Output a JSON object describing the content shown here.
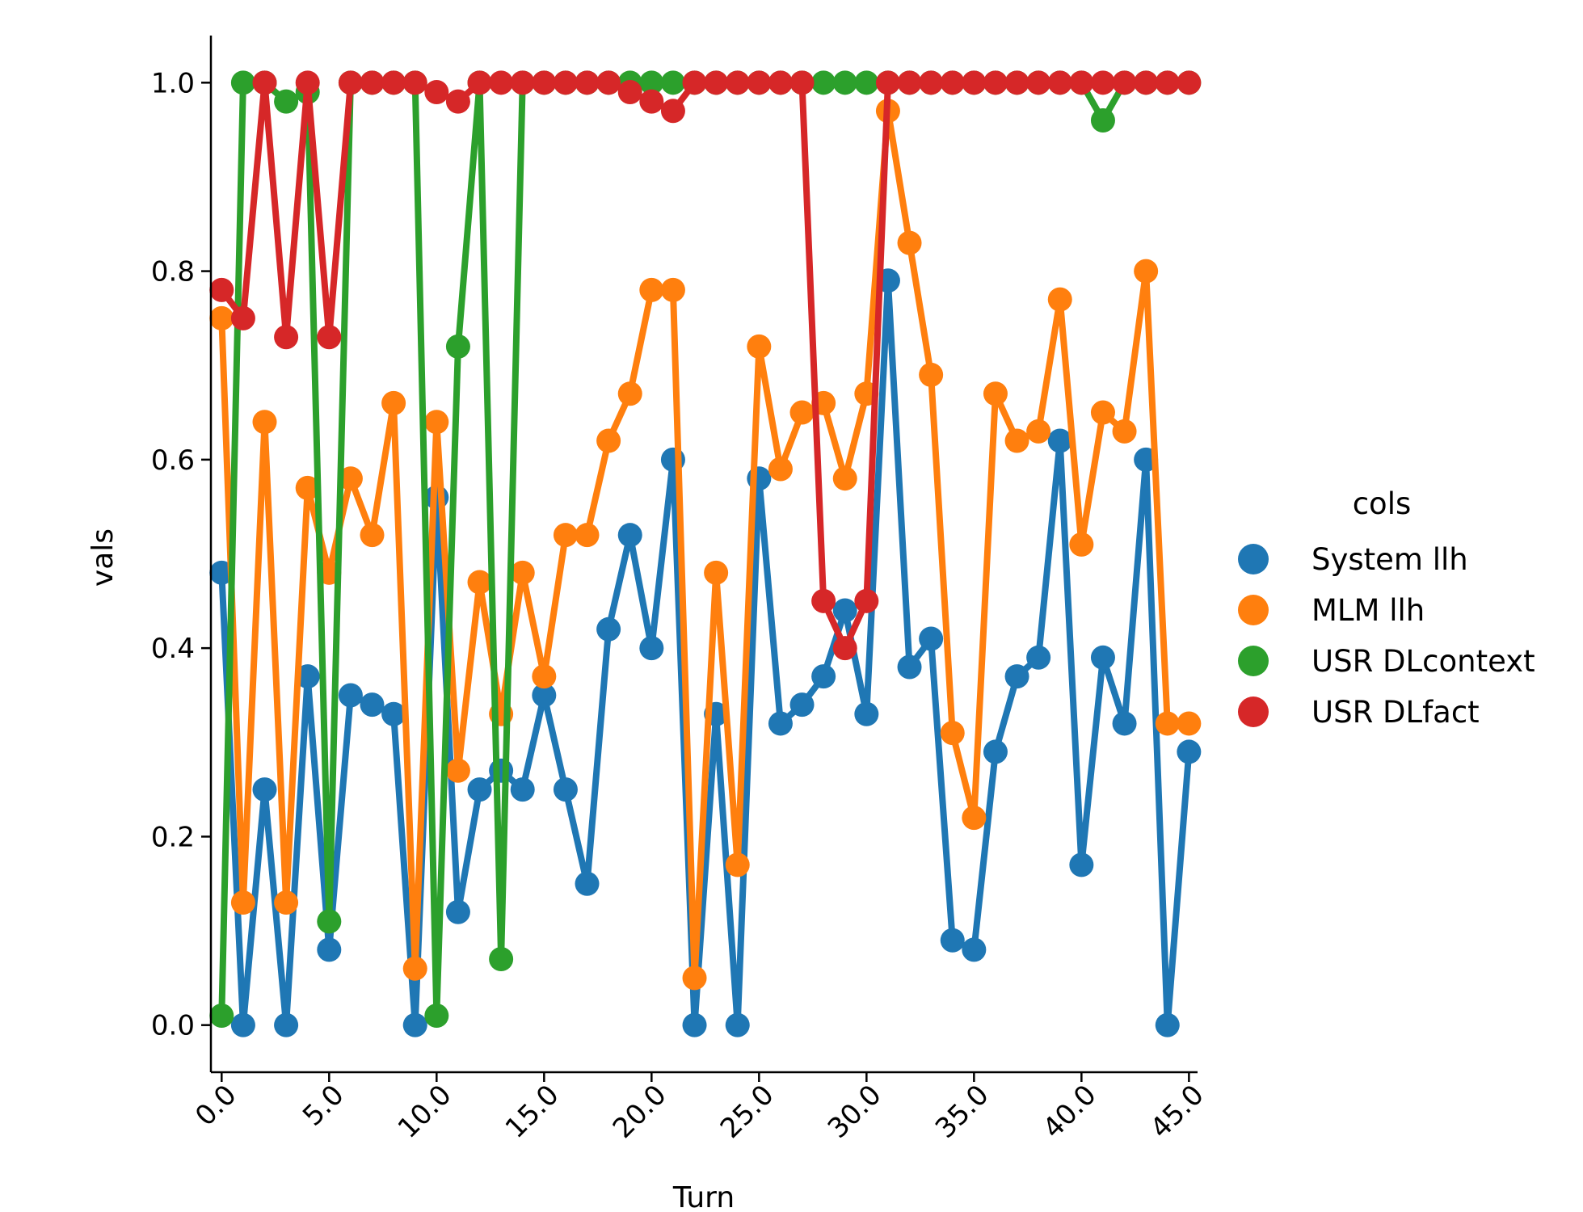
{
  "chart_data": {
    "type": "line",
    "xlabel": "Turn",
    "ylabel": "vals",
    "x": [
      0,
      1,
      2,
      3,
      4,
      5,
      6,
      7,
      8,
      9,
      10,
      11,
      12,
      13,
      14,
      15,
      16,
      17,
      18,
      19,
      20,
      21,
      22,
      23,
      24,
      25,
      26,
      27,
      28,
      29,
      30,
      31,
      32,
      33,
      34,
      35,
      36,
      37,
      38,
      39,
      40,
      41,
      42,
      43,
      44,
      45
    ],
    "xticks": [
      0,
      5,
      10,
      15,
      20,
      25,
      30,
      35,
      40,
      45
    ],
    "xtick_labels": [
      "0.0",
      "5.0",
      "10.0",
      "15.0",
      "20.0",
      "25.0",
      "30.0",
      "35.0",
      "40.0",
      "45.0"
    ],
    "yticks": [
      0.0,
      0.2,
      0.4,
      0.6,
      0.8,
      1.0
    ],
    "ytick_labels": [
      "0.0",
      "0.2",
      "0.4",
      "0.6",
      "0.8",
      "1.0"
    ],
    "xlim": [
      -0.5,
      45.4
    ],
    "ylim": [
      -0.05,
      1.05
    ],
    "grid": false,
    "legend": {
      "title": "cols",
      "position": "right"
    },
    "series": [
      {
        "name": "System llh",
        "color": "#1f77b4",
        "values": [
          0.48,
          0.0,
          0.25,
          0.0,
          0.37,
          0.08,
          0.35,
          0.34,
          0.33,
          0.0,
          0.56,
          0.12,
          0.25,
          0.27,
          0.25,
          0.35,
          0.25,
          0.15,
          0.42,
          0.52,
          0.4,
          0.6,
          0.0,
          0.33,
          0.0,
          0.58,
          0.32,
          0.34,
          0.37,
          0.44,
          0.33,
          0.79,
          0.38,
          0.41,
          0.09,
          0.08,
          0.29,
          0.37,
          0.39,
          0.62,
          0.17,
          0.39,
          0.32,
          0.6,
          0.0,
          0.29
        ]
      },
      {
        "name": "MLM llh",
        "color": "#ff7f0e",
        "values": [
          0.75,
          0.13,
          0.64,
          0.13,
          0.57,
          0.48,
          0.58,
          0.52,
          0.66,
          0.06,
          0.64,
          0.27,
          0.47,
          0.33,
          0.48,
          0.37,
          0.52,
          0.52,
          0.62,
          0.67,
          0.78,
          0.78,
          0.05,
          0.48,
          0.17,
          0.72,
          0.59,
          0.65,
          0.66,
          0.58,
          0.67,
          0.97,
          0.83,
          0.69,
          0.31,
          0.22,
          0.67,
          0.62,
          0.63,
          0.77,
          0.51,
          0.65,
          0.63,
          0.8,
          0.32,
          0.32
        ]
      },
      {
        "name": "USR DLcontext",
        "color": "#2ca02c",
        "values": [
          0.01,
          1.0,
          1.0,
          0.98,
          0.99,
          0.11,
          1.0,
          1.0,
          1.0,
          1.0,
          0.01,
          0.72,
          1.0,
          0.07,
          1.0,
          1.0,
          1.0,
          1.0,
          1.0,
          1.0,
          1.0,
          1.0,
          1.0,
          1.0,
          1.0,
          1.0,
          1.0,
          1.0,
          1.0,
          1.0,
          1.0,
          1.0,
          1.0,
          1.0,
          1.0,
          1.0,
          1.0,
          1.0,
          1.0,
          1.0,
          1.0,
          0.96,
          1.0,
          1.0,
          1.0,
          1.0
        ]
      },
      {
        "name": "USR DLfact",
        "color": "#d62728",
        "values": [
          0.78,
          0.75,
          1.0,
          0.73,
          1.0,
          0.73,
          1.0,
          1.0,
          1.0,
          1.0,
          0.99,
          0.98,
          1.0,
          1.0,
          1.0,
          1.0,
          1.0,
          1.0,
          1.0,
          0.99,
          0.98,
          0.97,
          1.0,
          1.0,
          1.0,
          1.0,
          1.0,
          1.0,
          0.45,
          0.4,
          0.45,
          1.0,
          1.0,
          1.0,
          1.0,
          1.0,
          1.0,
          1.0,
          1.0,
          1.0,
          1.0,
          1.0,
          1.0,
          1.0,
          1.0,
          1.0
        ]
      }
    ]
  }
}
